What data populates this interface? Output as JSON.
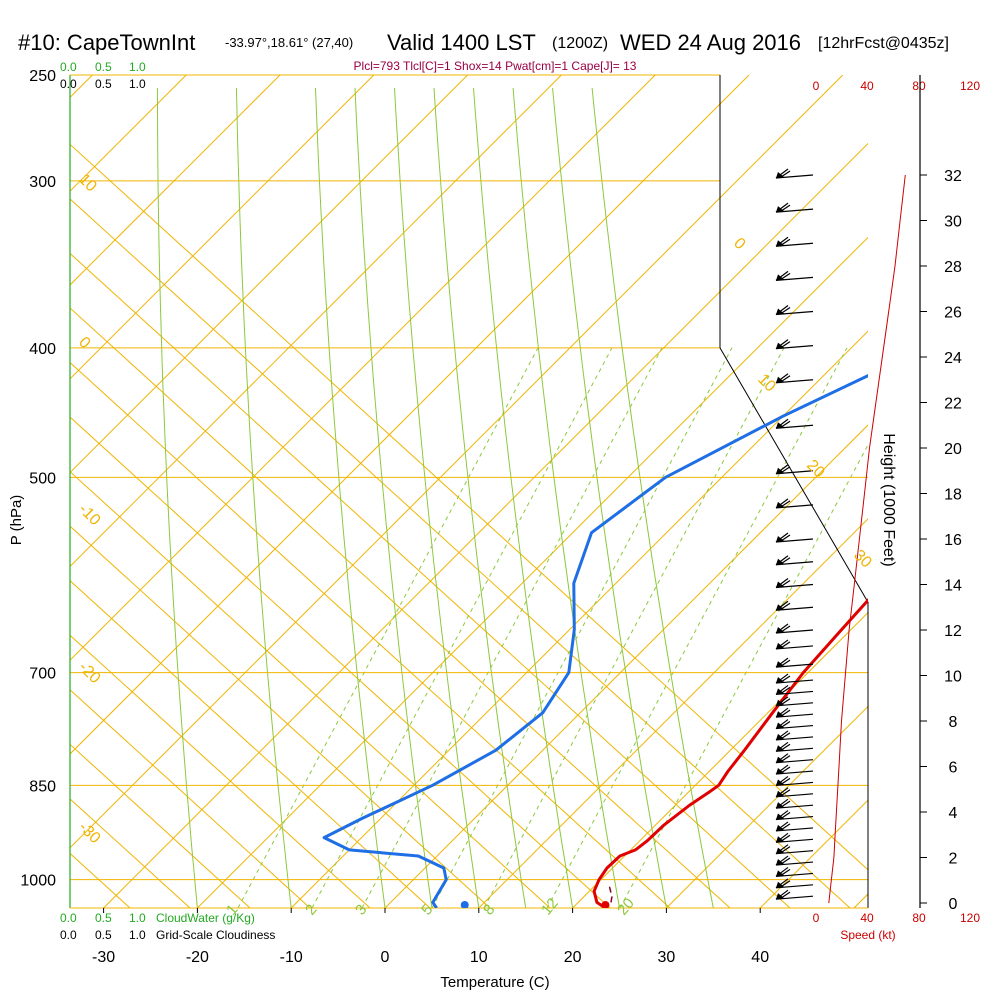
{
  "header": {
    "station": "#10: CapeTownInt",
    "coords": "-33.97°,18.61° (27,40)",
    "valid": "Valid 1400 LST",
    "zulu": "(1200Z)",
    "date": "WED 24 Aug 2016",
    "forecast": "[12hrFcst@0435z]",
    "indices": "Plcl=793 Tlcl[C]=1 Shox=14 Pwat[cm]=1 Cape[J]= 13"
  },
  "colors": {
    "isotherm": "#f0b400",
    "dry_adiabat": "#f0b400",
    "moist_adiabat": "#8cc83c",
    "mixing_ratio": "#8cc83c",
    "temperature": "#e00000",
    "dewpoint": "#1e6ee6",
    "cloud_scale": "#22aa22",
    "speed": "#cc0000",
    "indices": "#990044"
  },
  "labels": {
    "cloud_top_green": [
      "0.0",
      "0.5",
      "1.0"
    ],
    "cloud_top_black": [
      "0.0",
      "0.5",
      "1.0"
    ],
    "cloudwater_title": "CloudWater (g/Kg)",
    "cloudiness_title": "Grid-Scale Cloudiness",
    "speed_top": [
      "0",
      "40",
      "80",
      "120"
    ],
    "speed_bottom": [
      "0",
      "40",
      "80",
      "120"
    ],
    "speed_label": "Speed (kt)",
    "height_label": "Height (1000 Feet)"
  },
  "chart_data": {
    "type": "line",
    "title": "",
    "xlabel": "Temperature (C)",
    "ylabel": "P (hPa)",
    "xlim": [
      -35,
      49
    ],
    "ylim": [
      1050,
      250
    ],
    "yscale": "log",
    "x_ticks": [
      -30,
      -20,
      -10,
      0,
      10,
      20,
      30,
      40
    ],
    "pressure_ticks": [
      250,
      300,
      400,
      500,
      700,
      850,
      1000
    ],
    "height_ticks": [
      0,
      2,
      4,
      6,
      8,
      10,
      12,
      14,
      16,
      18,
      20,
      22,
      24,
      26,
      28,
      30,
      32
    ],
    "isotherm_labels": [
      "10",
      "0",
      "-10",
      "-20",
      "-30",
      "0",
      "10",
      "20",
      "30"
    ],
    "dry_adiabat_labels": [],
    "mixing_ratio_labels": [
      "1",
      "2",
      "3",
      "5",
      "8",
      "12",
      "20"
    ],
    "series": [
      {
        "name": "",
        "pressure": [
          1050,
          1040,
          1020,
          1000,
          980,
          960,
          950,
          935,
          910,
          880,
          860,
          850,
          830,
          800,
          750,
          700,
          650,
          600,
          550,
          500,
          450,
          400,
          350,
          300,
          270
        ],
        "values": [
          23.5,
          22.0,
          20.5,
          19.8,
          19.4,
          19.5,
          20.5,
          20.8,
          20.9,
          21.5,
          22.2,
          22.5,
          22.0,
          21.5,
          20.5,
          19.5,
          19.0,
          18.5,
          17.8,
          16.5,
          14.5,
          12.0,
          9.0,
          5.5,
          3.0
        ]
      },
      {
        "name": "",
        "pressure": [
          1050,
          1040,
          1000,
          980,
          960,
          950,
          930,
          900,
          850,
          800,
          750,
          700,
          650,
          600,
          550,
          500,
          450,
          400,
          380,
          350,
          320,
          300,
          280,
          270
        ],
        "values": [
          5.5,
          4.5,
          3.5,
          2.0,
          -2.0,
          -10.0,
          -14.0,
          -12.0,
          -8.0,
          -5.0,
          -4.0,
          -5.5,
          -9.5,
          -14.5,
          -18.0,
          -16.0,
          -10.0,
          -2.0,
          -3.0,
          -6.0,
          -10.5,
          -11.5,
          -11.5,
          -11.5
        ]
      },
      {
        "name": "",
        "pressure": [
          1040,
          1030,
          1010
        ],
        "values": [
          23.5,
          23.0,
          21.5
        ]
      }
    ],
    "surface_markers": [
      {
        "pressure": 1050,
        "value": 8.5
      },
      {
        "pressure": 1050,
        "value": 23.5
      }
    ],
    "wind_speed_profile": {
      "height_kft": [
        0,
        1,
        2,
        3,
        4,
        6,
        8,
        10,
        12,
        14,
        16,
        18,
        20,
        22,
        24,
        26,
        28,
        30,
        32
      ],
      "speed_kt": [
        10,
        12,
        14,
        15,
        16,
        18,
        20,
        23,
        26,
        30,
        34,
        38,
        42,
        47,
        52,
        57,
        62,
        66,
        70
      ]
    },
    "wind_barbs_height_kft": [
      0.3,
      0.8,
      1.3,
      1.8,
      2.3,
      2.8,
      3.3,
      3.8,
      4.3,
      4.8,
      5.3,
      5.8,
      6.3,
      6.8,
      7.3,
      7.8,
      8.3,
      8.8,
      9.3,
      9.8,
      10.5,
      11.3,
      12.0,
      13.0,
      14.0,
      15.0,
      16.0,
      17.5,
      19.0,
      21.0,
      23.0,
      24.5,
      26.0,
      27.5,
      29.0,
      30.5,
      32.0
    ]
  }
}
